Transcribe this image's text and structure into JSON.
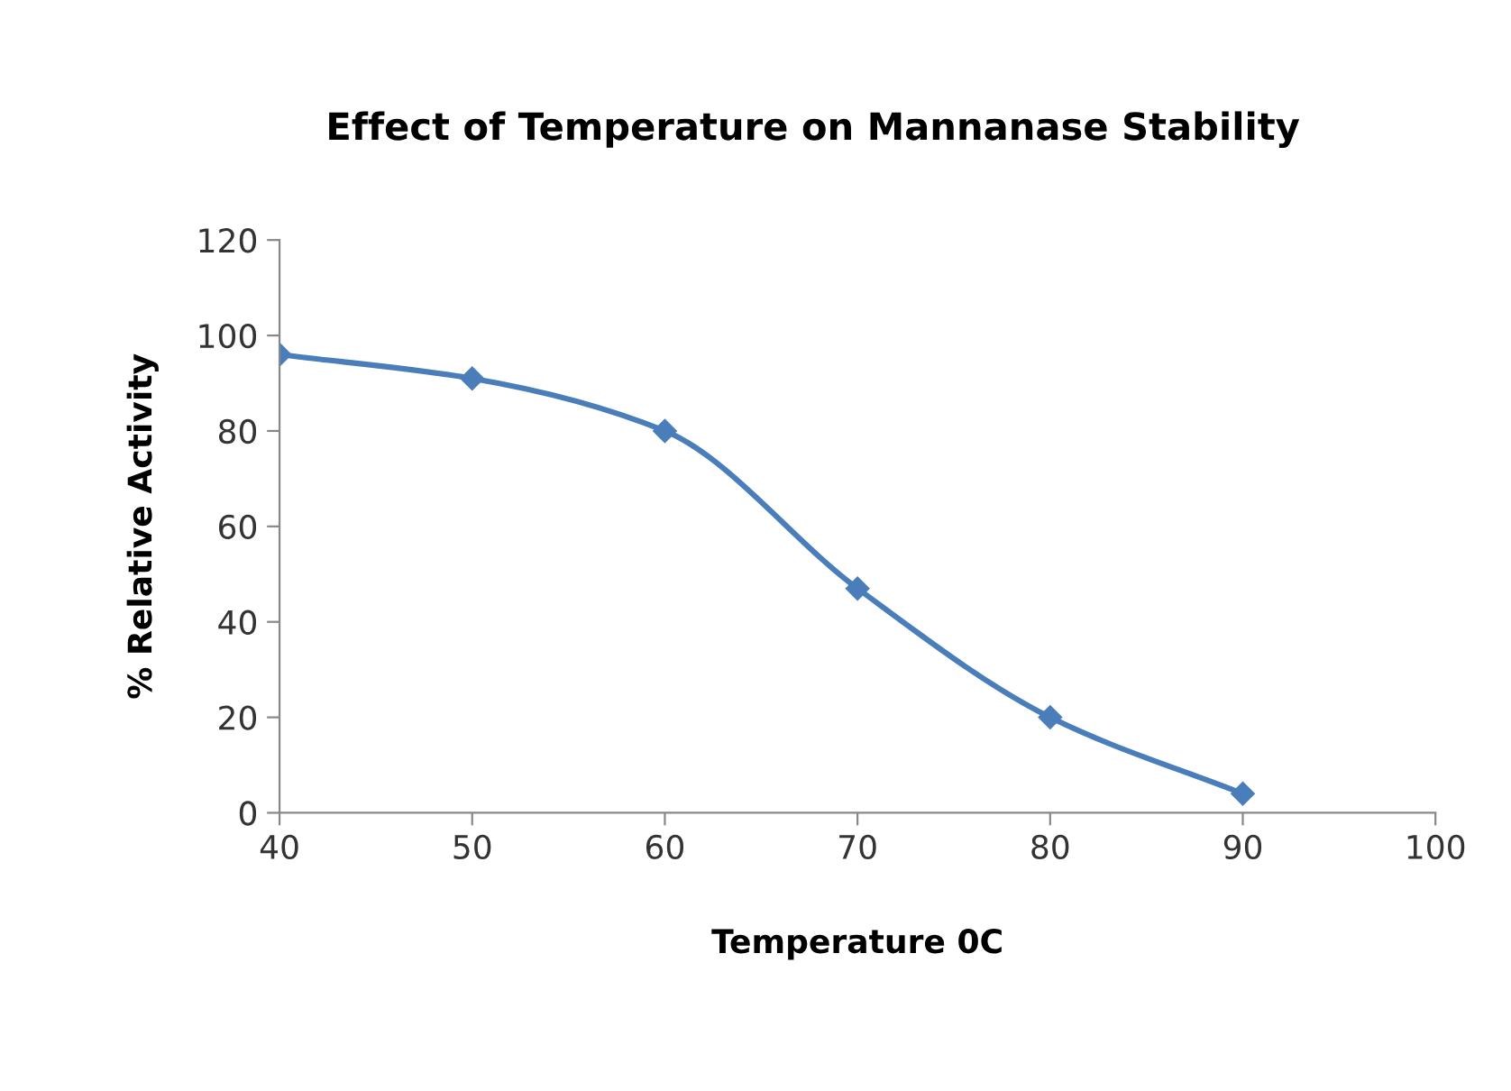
{
  "chart_data": {
    "type": "line",
    "title": "Effect of Temperature on Mannanase Stability",
    "xlabel": "Temperature 0C",
    "ylabel": "% Relative Activity",
    "x": [
      40,
      50,
      60,
      70,
      80,
      90
    ],
    "series": [
      {
        "color": "#4a7ebb",
        "values": [
          96,
          91,
          80,
          47,
          20,
          4
        ]
      }
    ],
    "xlim": [
      40,
      100
    ],
    "xticks": [
      40,
      50,
      60,
      70,
      80,
      90,
      100
    ],
    "ylim": [
      0,
      120
    ],
    "yticks": [
      0,
      20,
      40,
      60,
      80,
      100,
      120
    ],
    "grid": false,
    "legend": false,
    "marker": "diamond",
    "line_style": "solid"
  }
}
